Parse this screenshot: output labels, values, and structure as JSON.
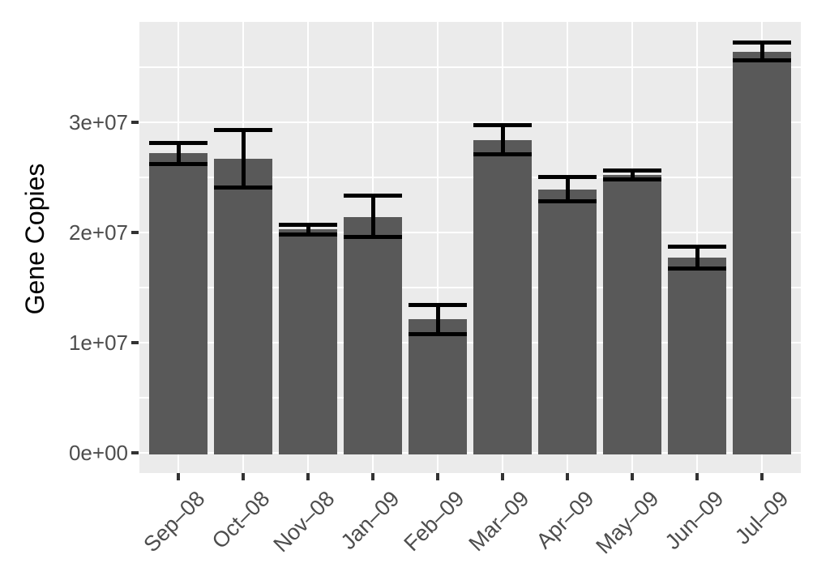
{
  "chart_data": {
    "type": "bar",
    "title": "",
    "xlabel": "",
    "ylabel": "Gene Copies",
    "categories": [
      "Sep–08",
      "Oct–08",
      "Nov–08",
      "Jan–09",
      "Feb–09",
      "Mar–09",
      "Apr–09",
      "May–09",
      "Jun–09",
      "Jul–09"
    ],
    "series": [
      {
        "name": "Gene Copies",
        "values": [
          27200000,
          26700000,
          20300000,
          21400000,
          12100000,
          28400000,
          23900000,
          25200000,
          17700000,
          36400000
        ],
        "error_upper": [
          28100000,
          29300000,
          20700000,
          23300000,
          13400000,
          29700000,
          25000000,
          25600000,
          18700000,
          37200000
        ],
        "error_lower": [
          26200000,
          24100000,
          19800000,
          19600000,
          10800000,
          27100000,
          22800000,
          24800000,
          16700000,
          35600000
        ]
      }
    ],
    "yticks": [
      {
        "label": "0e+00",
        "value": 0
      },
      {
        "label": "1e+07",
        "value": 10000000
      },
      {
        "label": "2e+07",
        "value": 20000000
      },
      {
        "label": "3e+07",
        "value": 30000000
      }
    ],
    "minor_yticks": [
      5000000,
      15000000,
      25000000,
      35000000
    ],
    "ylim": [
      -1820000,
      39090000
    ],
    "grid": true,
    "legend": false,
    "style": "ggplot-gray",
    "colors": {
      "bar": "#595959",
      "panel_bg": "#ebebeb",
      "grid": "#ffffff",
      "error_bar": "#000000",
      "tick_mark": "#333333",
      "tick_label": "#4d4d4d",
      "axis_title": "#000000",
      "page_bg": "#ffffff"
    }
  }
}
